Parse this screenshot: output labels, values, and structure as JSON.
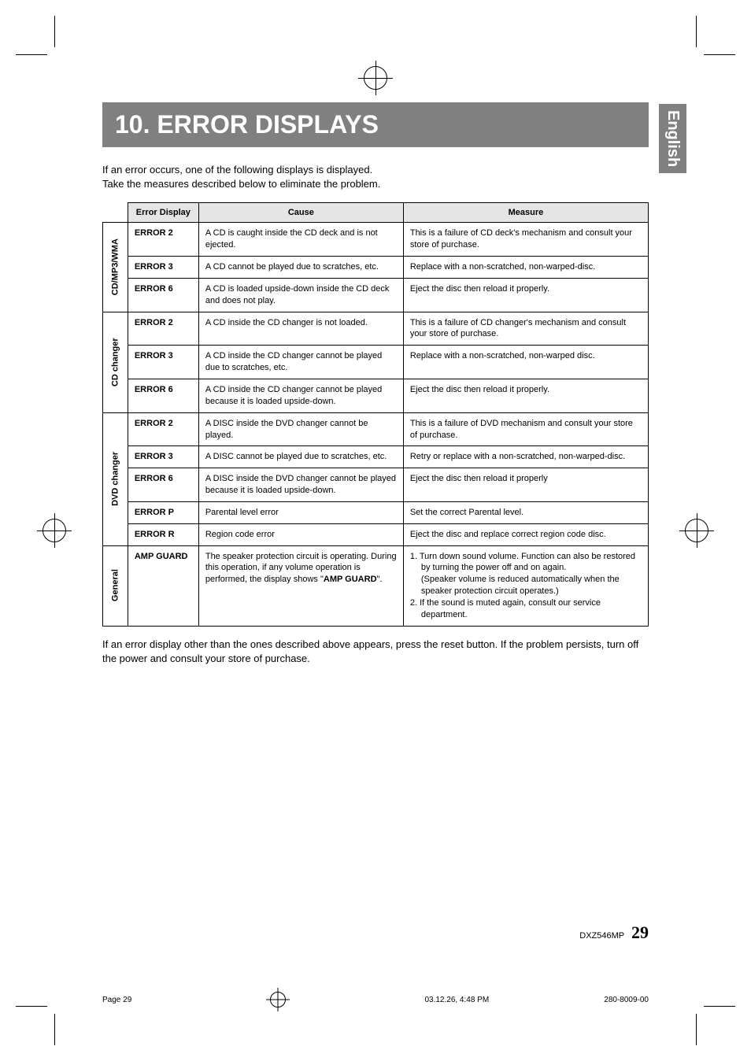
{
  "heading": "10. ERROR DISPLAYS",
  "sideTab": "English",
  "intro_line1": "If an error occurs, one of the following displays is displayed.",
  "intro_line2": "Take the measures described below to eliminate the problem.",
  "table": {
    "headers": {
      "c1": "Error Display",
      "c2": "Cause",
      "c3": "Measure"
    },
    "groups": [
      {
        "label": "CD/MP3/WMA",
        "rows": [
          {
            "err": "ERROR 2",
            "cause": "A CD is caught inside the CD deck and is not ejected.",
            "measure": "This is a failure of CD deck's mechanism and consult your store of purchase."
          },
          {
            "err": "ERROR 3",
            "cause": "A CD cannot be played due to scratches, etc.",
            "measure": "Replace with a non-scratched, non-warped-disc."
          },
          {
            "err": "ERROR 6",
            "cause": "A CD is loaded upside-down inside the CD deck and does not play.",
            "measure": "Eject the disc then reload it properly."
          }
        ]
      },
      {
        "label": "CD changer",
        "rows": [
          {
            "err": "ERROR 2",
            "cause": "A CD inside the CD changer is not loaded.",
            "measure": "This is a failure of CD changer's mechanism and consult your store of purchase."
          },
          {
            "err": "ERROR 3",
            "cause": "A CD inside the CD changer cannot be played due to scratches, etc.",
            "measure": "Replace with a non-scratched, non-warped disc."
          },
          {
            "err": "ERROR 6",
            "cause": "A CD inside the CD changer cannot be played because it is loaded upside-down.",
            "measure": "Eject the disc then reload it properly."
          }
        ]
      },
      {
        "label": "DVD changer",
        "rows": [
          {
            "err": "ERROR 2",
            "cause": "A DISC inside the DVD changer cannot be played.",
            "measure": "This is a failure of DVD mechanism and consult your store of purchase."
          },
          {
            "err": "ERROR 3",
            "cause": "A DISC cannot be played due to scratches, etc.",
            "measure": "Retry or replace with a non-scratched, non-warped-disc."
          },
          {
            "err": "ERROR 6",
            "cause": "A DISC inside the DVD changer cannot be played because it is loaded upside-down.",
            "measure": "Eject the disc then reload it properly"
          },
          {
            "err": "ERROR P",
            "cause": "Parental level error",
            "measure": "Set the correct Parental level."
          },
          {
            "err": "ERROR R",
            "cause": "Region code error",
            "measure": "Eject the disc and replace correct region code disc."
          }
        ]
      },
      {
        "label": "General",
        "rows": [
          {
            "err": "AMP GUARD",
            "cause_pre": "The speaker protection circuit is operating. During this operation, if any volume operation is performed, the display shows \"",
            "cause_bold": "AMP GUARD",
            "cause_post": "\".",
            "measure_1": "1.  Turn down sound volume. Function can also be restored by turning the power off and on again.",
            "measure_1b": "(Speaker volume is reduced automatically when the speaker protection circuit operates.)",
            "measure_2": "2.  If the sound is muted again, consult our service department."
          }
        ]
      }
    ]
  },
  "outro": "If an error display other than the ones described above appears, press the reset button. If the problem persists, turn off the power and consult your store of purchase.",
  "footer": {
    "model": "DXZ546MP",
    "page": "29"
  },
  "printInfo": {
    "left": "Page 29",
    "mid": "03.12.26, 4:48 PM",
    "right": "280-8009-00"
  }
}
